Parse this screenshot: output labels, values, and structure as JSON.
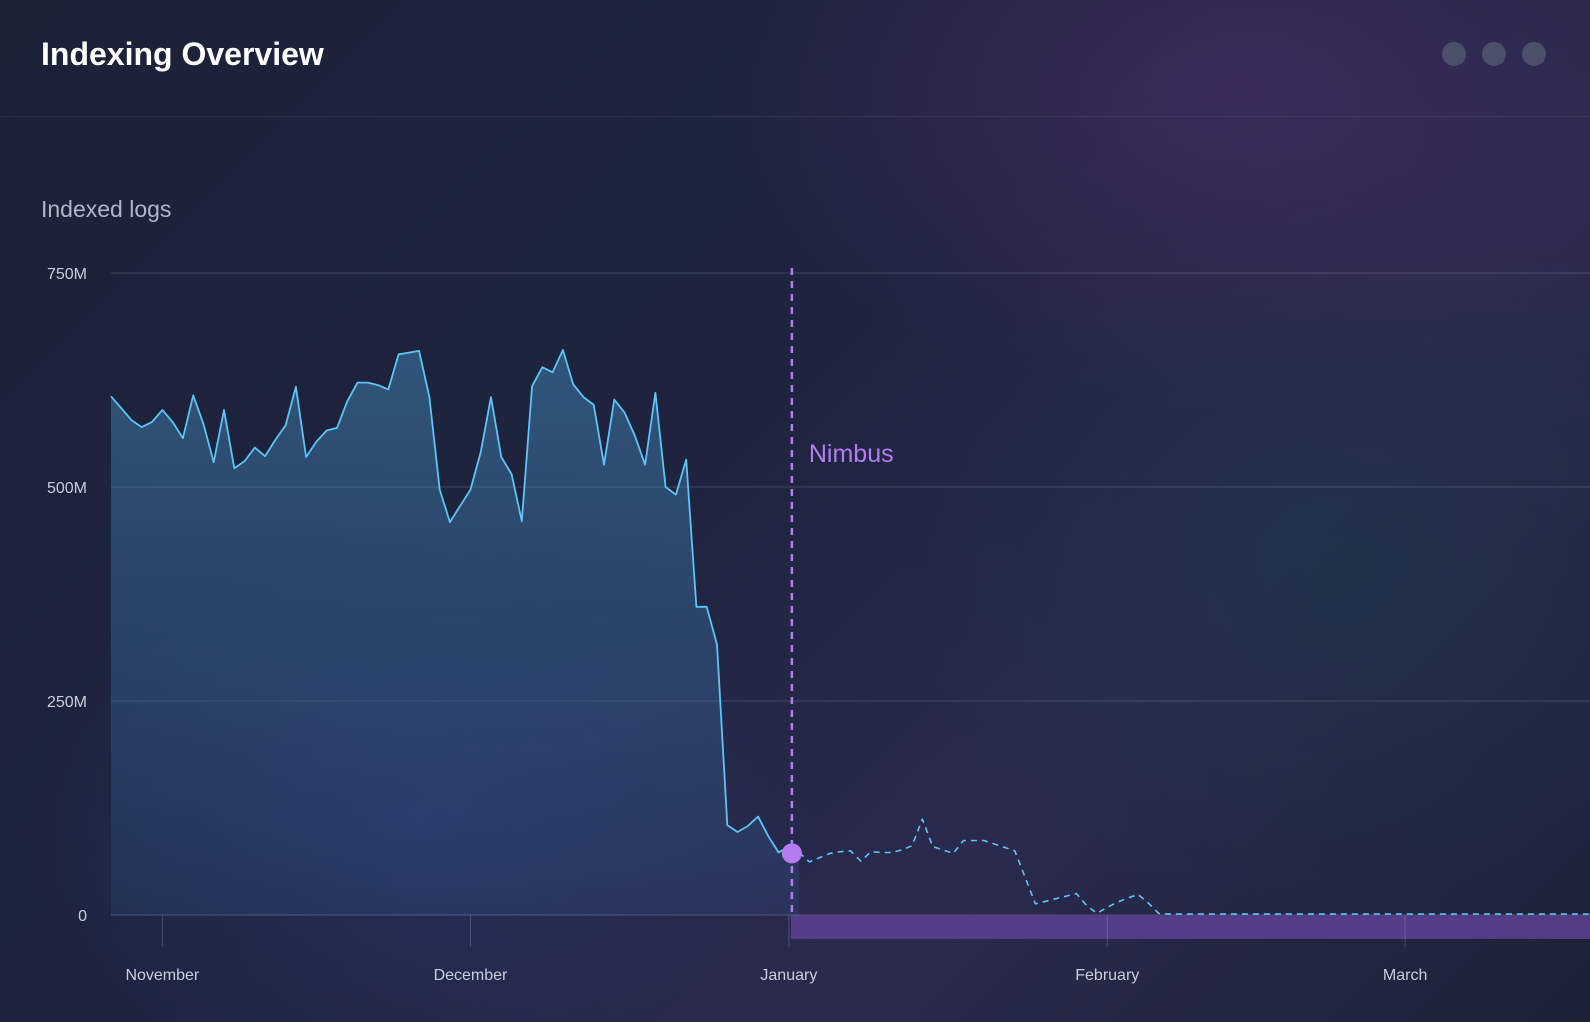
{
  "header": {
    "title": "Indexing Overview",
    "window_controls": [
      "dot",
      "dot",
      "dot"
    ]
  },
  "chart_data": {
    "type": "area",
    "title": "Indexed logs",
    "xlabel": "",
    "ylabel": "",
    "ylim": [
      0,
      750
    ],
    "y_unit": "M",
    "y_ticks": [
      {
        "value": 0,
        "label": "0"
      },
      {
        "value": 250,
        "label": "250M"
      },
      {
        "value": 500,
        "label": "500M"
      },
      {
        "value": 750,
        "label": "750M"
      }
    ],
    "x_start": "2023-10-27",
    "x_end": "2024-03-19",
    "x_ticks": [
      {
        "date": "2023-11-01",
        "label": "November"
      },
      {
        "date": "2023-12-01",
        "label": "December"
      },
      {
        "date": "2024-01-01",
        "label": "January"
      },
      {
        "date": "2024-02-01",
        "label": "February"
      },
      {
        "date": "2024-03-01",
        "label": "March"
      }
    ],
    "grid": true,
    "series": [
      {
        "style": "solid-area",
        "color": "#5ec4f6",
        "points": [
          [
            "2023-10-27",
            606
          ],
          [
            "2023-10-28",
            592
          ],
          [
            "2023-10-29",
            578
          ],
          [
            "2023-10-30",
            570
          ],
          [
            "2023-10-31",
            576
          ],
          [
            "2023-11-01",
            590
          ],
          [
            "2023-11-02",
            576
          ],
          [
            "2023-11-03",
            557
          ],
          [
            "2023-11-04",
            607
          ],
          [
            "2023-11-05",
            574
          ],
          [
            "2023-11-06",
            529
          ],
          [
            "2023-11-07",
            590
          ],
          [
            "2023-11-08",
            522
          ],
          [
            "2023-11-09",
            530
          ],
          [
            "2023-11-10",
            546
          ],
          [
            "2023-11-11",
            536
          ],
          [
            "2023-11-12",
            555
          ],
          [
            "2023-11-13",
            572
          ],
          [
            "2023-11-14",
            617
          ],
          [
            "2023-11-15",
            535
          ],
          [
            "2023-11-16",
            553
          ],
          [
            "2023-11-17",
            566
          ],
          [
            "2023-11-18",
            569
          ],
          [
            "2023-11-19",
            600
          ],
          [
            "2023-11-20",
            622
          ],
          [
            "2023-11-21",
            622
          ],
          [
            "2023-11-22",
            619
          ],
          [
            "2023-11-23",
            614
          ],
          [
            "2023-11-24",
            655
          ],
          [
            "2023-11-25",
            657
          ],
          [
            "2023-11-26",
            659
          ],
          [
            "2023-11-27",
            605
          ],
          [
            "2023-11-28",
            497
          ],
          [
            "2023-11-29",
            459
          ],
          [
            "2023-11-30",
            478
          ],
          [
            "2023-12-01",
            497
          ],
          [
            "2023-12-02",
            541
          ],
          [
            "2023-12-03",
            605
          ],
          [
            "2023-12-04",
            535
          ],
          [
            "2023-12-05",
            515
          ],
          [
            "2023-12-06",
            460
          ],
          [
            "2023-12-07",
            618
          ],
          [
            "2023-12-08",
            640
          ],
          [
            "2023-12-09",
            634
          ],
          [
            "2023-12-10",
            660
          ],
          [
            "2023-12-11",
            620
          ],
          [
            "2023-12-12",
            605
          ],
          [
            "2023-12-13",
            596
          ],
          [
            "2023-12-14",
            526
          ],
          [
            "2023-12-15",
            602
          ],
          [
            "2023-12-16",
            587
          ],
          [
            "2023-12-17",
            560
          ],
          [
            "2023-12-18",
            526
          ],
          [
            "2023-12-19",
            610
          ],
          [
            "2023-12-20",
            500
          ],
          [
            "2023-12-21",
            491
          ],
          [
            "2023-12-22",
            532
          ],
          [
            "2023-12-23",
            360
          ],
          [
            "2023-12-24",
            360
          ],
          [
            "2023-12-25",
            316
          ],
          [
            "2023-12-26",
            105
          ],
          [
            "2023-12-27",
            97
          ],
          [
            "2023-12-28",
            104
          ],
          [
            "2023-12-29",
            115
          ],
          [
            "2023-12-30",
            92
          ],
          [
            "2023-12-31",
            73
          ],
          [
            "2024-01-01",
            80
          ],
          [
            "2024-01-02",
            73
          ]
        ]
      },
      {
        "style": "dashed",
        "color": "#5ec4f6",
        "points": [
          [
            "2024-01-02",
            73
          ],
          [
            "2024-01-03",
            62
          ],
          [
            "2024-01-04",
            67
          ],
          [
            "2024-01-05",
            72
          ],
          [
            "2024-01-06",
            74
          ],
          [
            "2024-01-07",
            75
          ],
          [
            "2024-01-08",
            63
          ],
          [
            "2024-01-09",
            74
          ],
          [
            "2024-01-10",
            73
          ],
          [
            "2024-01-11",
            73
          ],
          [
            "2024-01-12",
            76
          ],
          [
            "2024-01-13",
            81
          ],
          [
            "2024-01-14",
            112
          ],
          [
            "2024-01-15",
            80
          ],
          [
            "2024-01-16",
            76
          ],
          [
            "2024-01-17",
            72
          ],
          [
            "2024-01-18",
            87
          ],
          [
            "2024-01-19",
            87
          ],
          [
            "2024-01-20",
            87
          ],
          [
            "2024-01-21",
            83
          ],
          [
            "2024-01-22",
            79
          ],
          [
            "2024-01-23",
            75
          ],
          [
            "2024-01-24",
            44
          ],
          [
            "2024-01-25",
            13
          ],
          [
            "2024-01-26",
            16
          ],
          [
            "2024-01-27",
            19
          ],
          [
            "2024-01-28",
            22
          ],
          [
            "2024-01-29",
            25
          ],
          [
            "2024-01-30",
            11
          ],
          [
            "2024-01-31",
            2
          ],
          [
            "2024-02-01",
            9
          ],
          [
            "2024-02-02",
            15
          ],
          [
            "2024-02-03",
            20
          ],
          [
            "2024-02-04",
            24
          ],
          [
            "2024-02-05",
            14
          ],
          [
            "2024-02-06",
            2
          ],
          [
            "2024-02-07",
            1
          ],
          [
            "2024-03-19",
            1
          ]
        ]
      }
    ],
    "annotation": {
      "label": "Nimbus",
      "date": "2024-01-01",
      "value": 72,
      "color": "#b57cf2"
    },
    "highlight_band": {
      "start": "2024-01-01",
      "end": "2024-03-19",
      "color": "#5a3f8e"
    }
  }
}
